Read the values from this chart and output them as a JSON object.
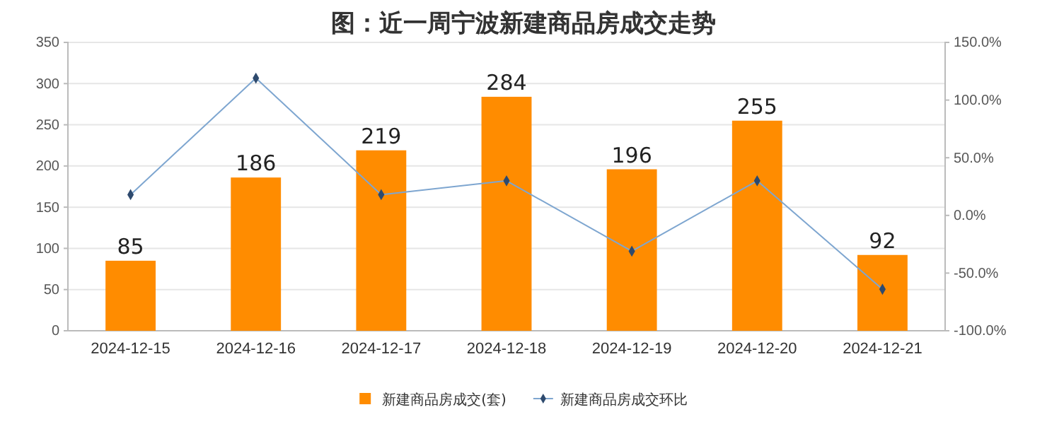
{
  "chart_data": {
    "type": "bar",
    "title": "图：近一周宁波新建商品房成交走势",
    "categories": [
      "2024-12-15",
      "2024-12-16",
      "2024-12-17",
      "2024-12-18",
      "2024-12-19",
      "2024-12-20",
      "2024-12-21"
    ],
    "series": [
      {
        "name": "新建商品房成交(套)",
        "color": "#ff8c00",
        "values": [
          85,
          186,
          219,
          284,
          196,
          255,
          92
        ]
      },
      {
        "name": "新建商品房成交环比",
        "type": "line",
        "axis": "y2",
        "color": "#7ea6d0",
        "marker": "diamond",
        "values": [
          18,
          119,
          18,
          30,
          -31,
          30,
          -64
        ]
      }
    ],
    "ylim": [
      0,
      350
    ],
    "yticks": [
      0,
      50,
      100,
      150,
      200,
      250,
      300,
      350
    ],
    "y2lim": [
      -100,
      150
    ],
    "y2ticks": [
      {
        "value": -100,
        "label": "-100.0%"
      },
      {
        "value": -50,
        "label": "-50.0%"
      },
      {
        "value": 0,
        "label": "0.0%"
      },
      {
        "value": 50,
        "label": "50.0%"
      },
      {
        "value": 100,
        "label": "100.0%"
      },
      {
        "value": 150,
        "label": "150.0%"
      }
    ],
    "grid": "y",
    "legend": "bottom",
    "value_labels": [
      "85",
      "186",
      "219",
      "284",
      "196",
      "255",
      "92"
    ]
  }
}
